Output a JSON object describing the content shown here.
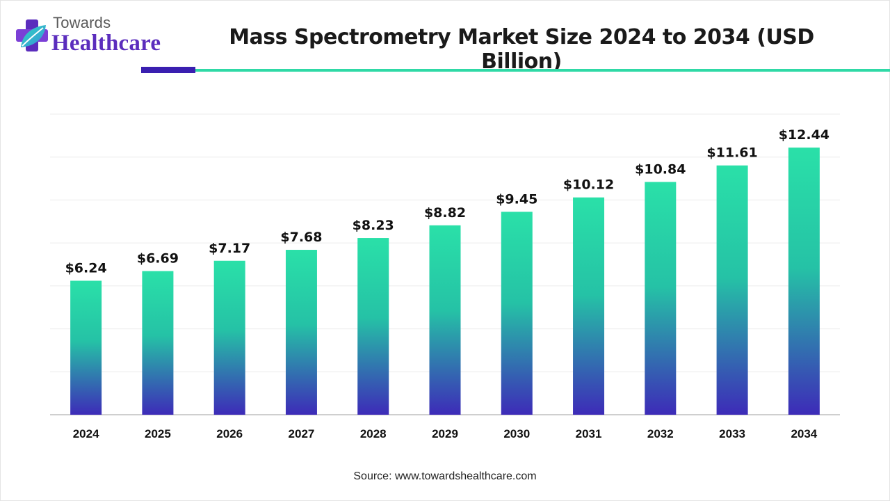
{
  "logo": {
    "line1": "Towards",
    "line2": "Healthcare"
  },
  "colors": {
    "accent_purple": "#3a1fb0",
    "accent_green": "#2fd9a6",
    "bar_top": "#2ae0a8",
    "bar_bottom": "#3d2bb8"
  },
  "chart_data": {
    "type": "bar",
    "title": "Mass Spectrometry Market Size 2024 to 2034 (USD Billion)",
    "categories": [
      "2024",
      "2025",
      "2026",
      "2027",
      "2028",
      "2029",
      "2030",
      "2031",
      "2032",
      "2033",
      "2034"
    ],
    "values": [
      6.24,
      6.69,
      7.17,
      7.68,
      8.23,
      8.82,
      9.45,
      10.12,
      10.84,
      11.61,
      12.44
    ],
    "value_labels": [
      "$6.24",
      "$6.69",
      "$7.17",
      "$7.68",
      "$8.23",
      "$8.82",
      "$9.45",
      "$10.12",
      "$10.84",
      "$11.61",
      "$12.44"
    ],
    "xlabel": "",
    "ylabel": "",
    "ylim": [
      0,
      14
    ],
    "grid": true,
    "legend": "none"
  },
  "source": "Source: www.towardshealthcare.com"
}
